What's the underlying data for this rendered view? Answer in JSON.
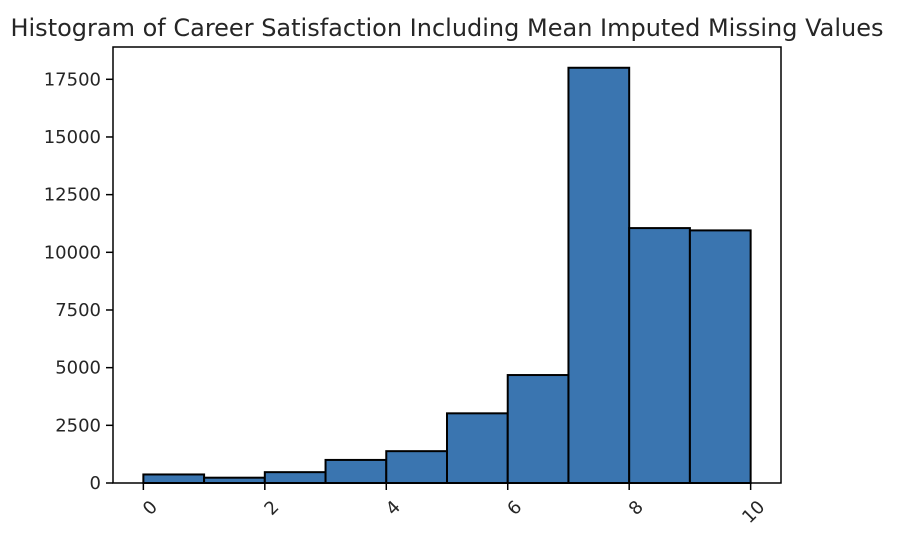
{
  "chart_data": {
    "type": "bar",
    "title": "Histogram of Career Satisfaction Including Mean Imputed Missing Values",
    "xlabel": "",
    "ylabel": "",
    "bins": [
      {
        "x0": 0,
        "x1": 1,
        "count": 370
      },
      {
        "x0": 1,
        "x1": 2,
        "count": 230
      },
      {
        "x0": 2,
        "x1": 3,
        "count": 470
      },
      {
        "x0": 3,
        "x1": 4,
        "count": 1000
      },
      {
        "x0": 4,
        "x1": 5,
        "count": 1380
      },
      {
        "x0": 5,
        "x1": 6,
        "count": 3020
      },
      {
        "x0": 6,
        "x1": 7,
        "count": 4680
      },
      {
        "x0": 7,
        "x1": 8,
        "count": 18000
      },
      {
        "x0": 8,
        "x1": 9,
        "count": 11050
      },
      {
        "x0": 9,
        "x1": 10,
        "count": 10950
      }
    ],
    "xlim": [
      -0.5,
      10.5
    ],
    "ylim": [
      0,
      18900
    ],
    "xticks": [
      0,
      2,
      4,
      6,
      8,
      10
    ],
    "yticks": [
      0,
      2500,
      5000,
      7500,
      10000,
      12500,
      15000,
      17500
    ],
    "xtick_rotation": 45,
    "grid": false,
    "legend": false,
    "bar_color": "#3a75b0",
    "edge_color": "#000000"
  }
}
